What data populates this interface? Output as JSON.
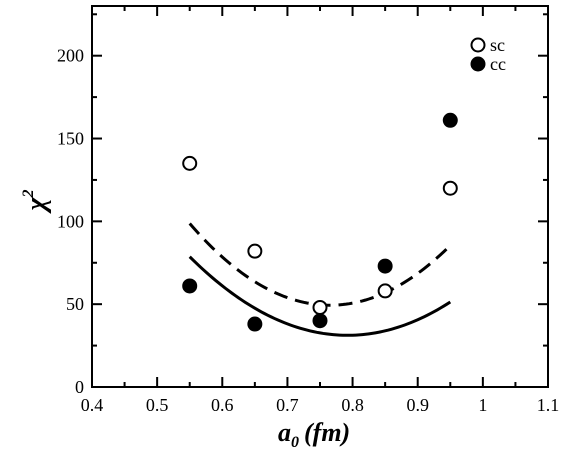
{
  "chart_data": {
    "type": "scatter",
    "title": "",
    "xlabel": {
      "main": "a",
      "sub": "0",
      "unit": "(fm)"
    },
    "ylabel": {
      "main": "χ",
      "sup": "2"
    },
    "xlim": [
      0.4,
      1.1
    ],
    "ylim": [
      0,
      230
    ],
    "xticks": [
      "0.4",
      "0.5",
      "0.6",
      "0.7",
      "0.8",
      "0.9",
      "1",
      "1.1"
    ],
    "yticks": [
      "0",
      "50",
      "100",
      "150",
      "200"
    ],
    "grid": false,
    "legend_position": "top-right",
    "series": [
      {
        "name": "sc",
        "marker": "open-circle",
        "fit_line": "dashed",
        "points": [
          {
            "x": 0.55,
            "y": 135
          },
          {
            "x": 0.65,
            "y": 82
          },
          {
            "x": 0.75,
            "y": 48
          },
          {
            "x": 0.85,
            "y": 58
          },
          {
            "x": 0.95,
            "y": 120
          }
        ],
        "fit_coeffs": [
          1061.3,
          -1625.0,
          671.4
        ]
      },
      {
        "name": "cc",
        "marker": "filled-circle",
        "fit_line": "solid",
        "points": [
          {
            "x": 0.55,
            "y": 61
          },
          {
            "x": 0.65,
            "y": 38
          },
          {
            "x": 0.75,
            "y": 40
          },
          {
            "x": 0.85,
            "y": 73
          },
          {
            "x": 0.95,
            "y": 161
          }
        ],
        "fit_coeffs": [
          808.1,
          -1280.4,
          538.4
        ]
      }
    ],
    "colors": {
      "marker": "#000000",
      "line": "#000000",
      "background": "#ffffff"
    }
  }
}
